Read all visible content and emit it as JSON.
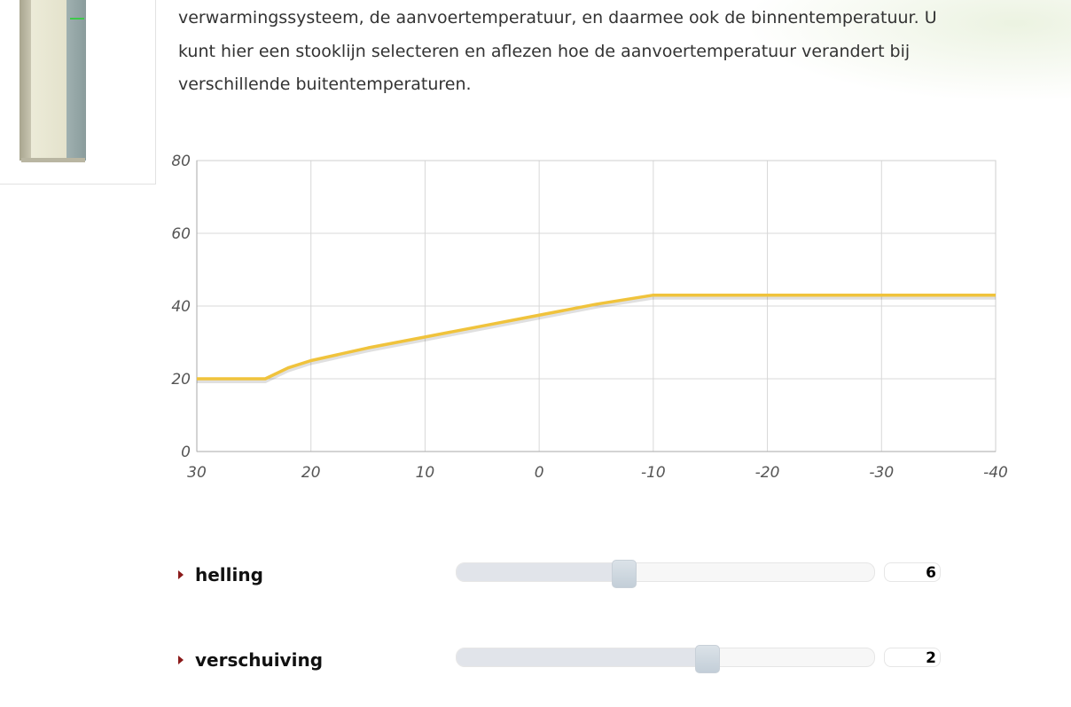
{
  "intro": {
    "lines": [
      "verwarmingssysteem, de aanvoertemperatuur, en daarmee ook de binnentemperatuur. U",
      "kunt hier een stooklijn selecteren en aflezen hoe de aanvoertemperatuur verandert bij",
      "verschillende buitentemperaturen."
    ]
  },
  "chart_data": {
    "type": "line",
    "title": "",
    "xlabel": "",
    "ylabel": "",
    "xlim": [
      30,
      -40
    ],
    "ylim": [
      0,
      80
    ],
    "x_ticks": [
      "30",
      "20",
      "10",
      "0",
      "-10",
      "-20",
      "-30",
      "-40"
    ],
    "y_ticks": [
      "0",
      "20",
      "40",
      "60",
      "80"
    ],
    "grid": true,
    "series": [
      {
        "color": "#f0c33c",
        "x": [
          30,
          24,
          22,
          20,
          15,
          10,
          5,
          0,
          -5,
          -10,
          -40
        ],
        "y": [
          20,
          20,
          23,
          25,
          28.5,
          31.5,
          34.5,
          37.5,
          40.5,
          43,
          43
        ]
      }
    ]
  },
  "controls": [
    {
      "label": "helling",
      "value": "6",
      "position_fraction": 0.4
    },
    {
      "label": "verschuiving",
      "value": "2",
      "position_fraction": 0.6
    }
  ],
  "colors": {
    "accent_arrow": "#8b1a1a",
    "line": "#f0c33c"
  }
}
